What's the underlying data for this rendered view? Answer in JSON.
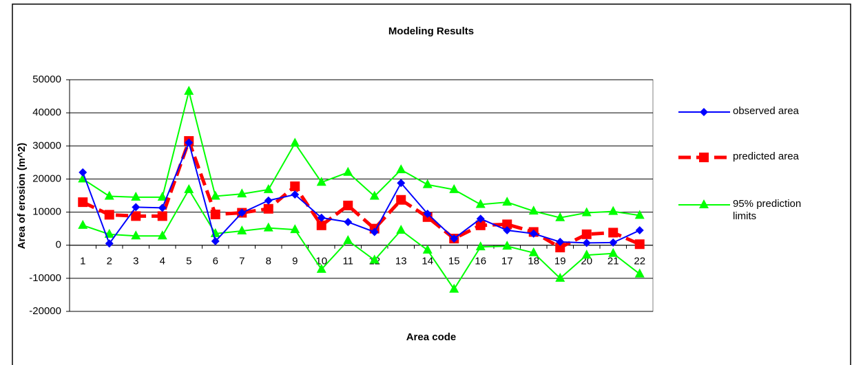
{
  "chart_data": {
    "type": "line",
    "title": "Modeling Results",
    "x_label": "Area code",
    "y_label": "Area of erosion (m^2)",
    "categories": [
      "1",
      "2",
      "3",
      "4",
      "5",
      "6",
      "7",
      "8",
      "9",
      "10",
      "11",
      "12",
      "13",
      "14",
      "15",
      "16",
      "17",
      "18",
      "19",
      "20",
      "21",
      "22"
    ],
    "ylim": [
      -20000,
      50000
    ],
    "yticks": [
      -20000,
      -10000,
      0,
      10000,
      20000,
      30000,
      40000,
      50000
    ],
    "grid": true,
    "series": [
      {
        "name": "observed area",
        "color": "#0000ff",
        "marker": "diamond",
        "values": [
          22000,
          500,
          11500,
          11300,
          31000,
          1200,
          9800,
          13500,
          15300,
          8300,
          7000,
          4000,
          18800,
          9500,
          2000,
          8000,
          4500,
          3500,
          1000,
          700,
          800,
          4500
        ]
      },
      {
        "name": "predicted area",
        "color": "#ff0000",
        "marker": "square",
        "dashed": true,
        "values": [
          13000,
          9200,
          8800,
          8800,
          31500,
          9300,
          9800,
          11000,
          17800,
          6000,
          12000,
          5000,
          13700,
          8500,
          2000,
          6000,
          6300,
          4000,
          -700,
          3300,
          3800,
          300
        ]
      },
      {
        "name": "95% prediction limits",
        "color": "#00ff00",
        "marker": "triangle",
        "upper": [
          20000,
          14800,
          14500,
          14500,
          46500,
          14800,
          15500,
          16800,
          30800,
          19000,
          22000,
          14800,
          22800,
          18300,
          16800,
          12300,
          13000,
          10300,
          8300,
          9800,
          10200,
          9000
        ],
        "lower": [
          6000,
          3300,
          2800,
          2800,
          16800,
          3500,
          4300,
          5200,
          4700,
          -7300,
          1400,
          -4500,
          4500,
          -1500,
          -13300,
          -500,
          -300,
          -2300,
          -10000,
          -3000,
          -2500,
          -8700
        ]
      }
    ]
  }
}
